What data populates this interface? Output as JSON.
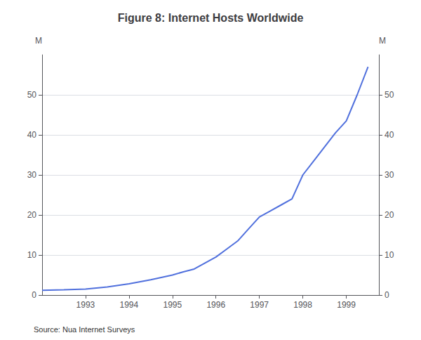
{
  "chart_data": {
    "type": "line",
    "title": "Figure 8: Internet Hosts Worldwide",
    "source": "Source: Nua Internet Surveys",
    "y_label": "M",
    "y2_label": "M",
    "x": [
      1992.0,
      1992.5,
      1993.0,
      1993.5,
      1994.0,
      1994.5,
      1995.0,
      1995.25,
      1995.5,
      1995.75,
      1996.0,
      1996.25,
      1996.5,
      1996.75,
      1997.0,
      1997.25,
      1997.5,
      1997.75,
      1998.0,
      1998.25,
      1998.5,
      1998.75,
      1999.0,
      1999.25,
      1999.5
    ],
    "values": [
      1.2,
      1.3,
      1.5,
      2.0,
      2.8,
      3.8,
      5.0,
      5.8,
      6.5,
      8.0,
      9.5,
      11.5,
      13.5,
      16.5,
      19.5,
      21.0,
      22.5,
      24.0,
      30.0,
      33.5,
      37.0,
      40.5,
      43.5,
      50.0,
      57.0
    ],
    "xlim": [
      1992.0,
      1999.75
    ],
    "xticks": [
      1993,
      1994,
      1995,
      1996,
      1997,
      1998,
      1999
    ],
    "ylim": [
      0,
      60
    ],
    "yticks": [
      0,
      10,
      20,
      30,
      40,
      50
    ],
    "y2lim": [
      0,
      60
    ],
    "y2ticks": [
      0,
      10,
      20,
      30,
      40,
      50
    ],
    "grid": "y"
  }
}
